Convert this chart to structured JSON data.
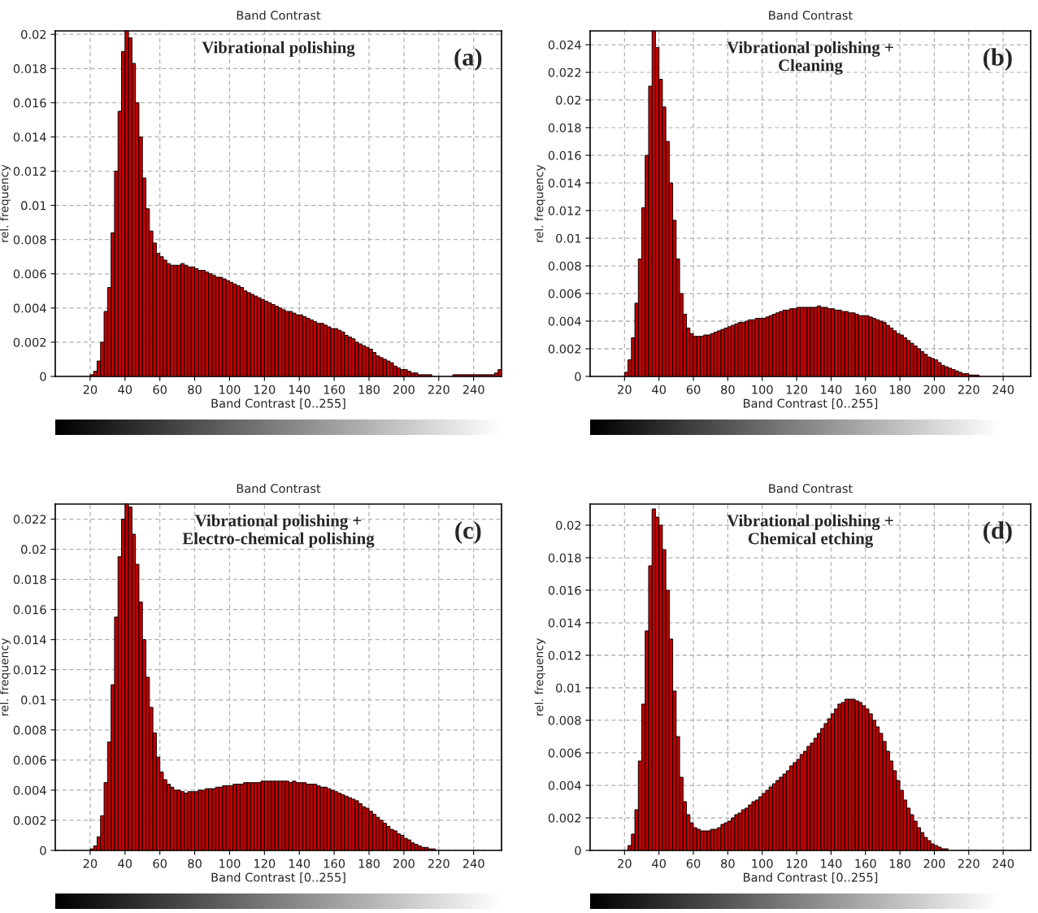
{
  "chart_data": [
    {
      "type": "histogram",
      "title": "Band Contrast",
      "xlabel": "Band Contrast [0..255]",
      "ylabel": "rel. frequency",
      "annotations": [
        "Vibrational polishing",
        "(a)"
      ],
      "color": "#c00000",
      "grid": true,
      "xlim": [
        0,
        256
      ],
      "ylim": [
        0,
        0.0202
      ],
      "xticks": [
        20,
        40,
        60,
        80,
        100,
        120,
        140,
        160,
        180,
        200,
        220,
        240
      ],
      "yticks": [
        0,
        0.002,
        0.004,
        0.006,
        0.008,
        0.01,
        0.012,
        0.014,
        0.016,
        0.018,
        0.02
      ],
      "bins": [
        0,
        2,
        4,
        6,
        8,
        10,
        12,
        14,
        16,
        18,
        20,
        22,
        24,
        26,
        28,
        30,
        32,
        34,
        36,
        38,
        40,
        42,
        44,
        46,
        48,
        50,
        52,
        54,
        56,
        58,
        60,
        62,
        64,
        66,
        68,
        70,
        72,
        74,
        76,
        78,
        80,
        82,
        84,
        86,
        88,
        90,
        92,
        94,
        96,
        98,
        100,
        102,
        104,
        106,
        108,
        110,
        112,
        114,
        116,
        118,
        120,
        122,
        124,
        126,
        128,
        130,
        132,
        134,
        136,
        138,
        140,
        142,
        144,
        146,
        148,
        150,
        152,
        154,
        156,
        158,
        160,
        162,
        164,
        166,
        168,
        170,
        172,
        174,
        176,
        178,
        180,
        182,
        184,
        186,
        188,
        190,
        192,
        194,
        196,
        198,
        200,
        202,
        204,
        206,
        208,
        210,
        212,
        214,
        216,
        218,
        220,
        222,
        224,
        226,
        228,
        230,
        232,
        234,
        236,
        238,
        240,
        242,
        244,
        246,
        248,
        250,
        252,
        254,
        256
      ],
      "values": [
        0,
        0,
        0,
        0,
        0,
        0,
        0,
        0,
        0,
        0,
        0.0001,
        0.0003,
        0.0009,
        0.002,
        0.0038,
        0.0052,
        0.0084,
        0.012,
        0.0155,
        0.019,
        0.0202,
        0.0198,
        0.0183,
        0.016,
        0.014,
        0.0116,
        0.0098,
        0.0085,
        0.0078,
        0.0072,
        0.007,
        0.0068,
        0.0066,
        0.0065,
        0.0065,
        0.0065,
        0.0066,
        0.0065,
        0.0064,
        0.0064,
        0.0063,
        0.0062,
        0.0062,
        0.0061,
        0.006,
        0.0059,
        0.0058,
        0.0058,
        0.0057,
        0.0056,
        0.0055,
        0.0054,
        0.0053,
        0.0052,
        0.005,
        0.0049,
        0.0048,
        0.0047,
        0.0046,
        0.0045,
        0.0044,
        0.0043,
        0.0042,
        0.0041,
        0.004,
        0.0039,
        0.0038,
        0.0038,
        0.0037,
        0.0036,
        0.0036,
        0.0035,
        0.0034,
        0.0033,
        0.0032,
        0.0031,
        0.0031,
        0.003,
        0.0029,
        0.0028,
        0.0028,
        0.0027,
        0.0026,
        0.0024,
        0.0023,
        0.0022,
        0.002,
        0.0019,
        0.0018,
        0.0017,
        0.0016,
        0.0014,
        0.0012,
        0.0011,
        0.001,
        0.0009,
        0.0008,
        0.0006,
        0.0005,
        0.0004,
        0.0004,
        0.0003,
        0.0002,
        0.0002,
        0.0001,
        0.0001,
        0.0001,
        0.0001,
        0,
        0,
        0,
        0,
        0,
        0,
        0.0001,
        0.0001,
        0.0001,
        0.0001,
        0.0001,
        0.0001,
        0.0001,
        0.0001,
        0.0001,
        0.0001,
        0.0001,
        0.0001,
        0.0002,
        0.0004
      ]
    },
    {
      "type": "histogram",
      "title": "Band Contrast",
      "xlabel": "Band Contrast [0..255]",
      "ylabel": "rel. frequency",
      "annotations": [
        "Vibrational polishing +\nCleaning",
        "(b)"
      ],
      "color": "#c00000",
      "grid": true,
      "xlim": [
        0,
        256
      ],
      "ylim": [
        0,
        0.025
      ],
      "xticks": [
        20,
        40,
        60,
        80,
        100,
        120,
        140,
        160,
        180,
        200,
        220,
        240
      ],
      "yticks": [
        0,
        0.002,
        0.004,
        0.006,
        0.008,
        0.01,
        0.012,
        0.014,
        0.016,
        0.018,
        0.02,
        0.022,
        0.024
      ],
      "bins": [
        0,
        2,
        4,
        6,
        8,
        10,
        12,
        14,
        16,
        18,
        20,
        22,
        24,
        26,
        28,
        30,
        32,
        34,
        36,
        38,
        40,
        42,
        44,
        46,
        48,
        50,
        52,
        54,
        56,
        58,
        60,
        62,
        64,
        66,
        68,
        70,
        72,
        74,
        76,
        78,
        80,
        82,
        84,
        86,
        88,
        90,
        92,
        94,
        96,
        98,
        100,
        102,
        104,
        106,
        108,
        110,
        112,
        114,
        116,
        118,
        120,
        122,
        124,
        126,
        128,
        130,
        132,
        134,
        136,
        138,
        140,
        142,
        144,
        146,
        148,
        150,
        152,
        154,
        156,
        158,
        160,
        162,
        164,
        166,
        168,
        170,
        172,
        174,
        176,
        178,
        180,
        182,
        184,
        186,
        188,
        190,
        192,
        194,
        196,
        198,
        200,
        202,
        204,
        206,
        208,
        210,
        212,
        214,
        216,
        218,
        220,
        222,
        224,
        226,
        228,
        230,
        232,
        234,
        236,
        238,
        240,
        242,
        244,
        246,
        248,
        250,
        252,
        254,
        256
      ],
      "values": [
        0,
        0,
        0,
        0,
        0,
        0,
        0,
        0,
        0,
        0,
        0.0003,
        0.0012,
        0.0028,
        0.0053,
        0.0085,
        0.0122,
        0.016,
        0.021,
        0.025,
        0.0238,
        0.0215,
        0.0195,
        0.017,
        0.014,
        0.0113,
        0.0085,
        0.006,
        0.0045,
        0.0035,
        0.0031,
        0.0029,
        0.0029,
        0.0029,
        0.003,
        0.003,
        0.0031,
        0.0032,
        0.0033,
        0.0034,
        0.0035,
        0.0036,
        0.0037,
        0.0038,
        0.0039,
        0.0039,
        0.004,
        0.0041,
        0.0041,
        0.0042,
        0.0042,
        0.0042,
        0.0043,
        0.0044,
        0.0045,
        0.0046,
        0.0047,
        0.0048,
        0.0048,
        0.0049,
        0.0049,
        0.005,
        0.005,
        0.005,
        0.005,
        0.005,
        0.005,
        0.0051,
        0.005,
        0.005,
        0.0049,
        0.0049,
        0.0048,
        0.0048,
        0.0047,
        0.0047,
        0.0046,
        0.0046,
        0.0045,
        0.0044,
        0.0044,
        0.0044,
        0.0043,
        0.0042,
        0.0041,
        0.004,
        0.0039,
        0.0037,
        0.0035,
        0.0033,
        0.0031,
        0.003,
        0.0028,
        0.0026,
        0.0024,
        0.0022,
        0.002,
        0.0018,
        0.0016,
        0.0014,
        0.0013,
        0.0012,
        0.001,
        0.0008,
        0.0007,
        0.0006,
        0.0005,
        0.0004,
        0.0003,
        0.0002,
        0.0002,
        0.0001,
        0.0001,
        0.0001,
        0,
        0,
        0,
        0,
        0,
        0,
        0,
        0,
        0,
        0,
        0,
        0,
        0,
        0,
        0
      ]
    },
    {
      "type": "histogram",
      "title": "Band Contrast",
      "xlabel": "Band Contrast [0..255]",
      "ylabel": "rel. frequency",
      "annotations": [
        "Vibrational polishing +\nElectro-chemical polishing",
        "(c)"
      ],
      "color": "#c00000",
      "grid": true,
      "xlim": [
        0,
        256
      ],
      "ylim": [
        0,
        0.023
      ],
      "xticks": [
        20,
        40,
        60,
        80,
        100,
        120,
        140,
        160,
        180,
        200,
        220,
        240
      ],
      "yticks": [
        0,
        0.002,
        0.004,
        0.006,
        0.008,
        0.01,
        0.012,
        0.014,
        0.016,
        0.018,
        0.02,
        0.022
      ],
      "bins": [
        0,
        2,
        4,
        6,
        8,
        10,
        12,
        14,
        16,
        18,
        20,
        22,
        24,
        26,
        28,
        30,
        32,
        34,
        36,
        38,
        40,
        42,
        44,
        46,
        48,
        50,
        52,
        54,
        56,
        58,
        60,
        62,
        64,
        66,
        68,
        70,
        72,
        74,
        76,
        78,
        80,
        82,
        84,
        86,
        88,
        90,
        92,
        94,
        96,
        98,
        100,
        102,
        104,
        106,
        108,
        110,
        112,
        114,
        116,
        118,
        120,
        122,
        124,
        126,
        128,
        130,
        132,
        134,
        136,
        138,
        140,
        142,
        144,
        146,
        148,
        150,
        152,
        154,
        156,
        158,
        160,
        162,
        164,
        166,
        168,
        170,
        172,
        174,
        176,
        178,
        180,
        182,
        184,
        186,
        188,
        190,
        192,
        194,
        196,
        198,
        200,
        202,
        204,
        206,
        208,
        210,
        212,
        214,
        216,
        218,
        220,
        222,
        224,
        226,
        228,
        230,
        232,
        234,
        236,
        238,
        240,
        242,
        244,
        246,
        248,
        250,
        252,
        254,
        256
      ],
      "values": [
        0,
        0,
        0,
        0,
        0,
        0,
        0,
        0,
        0,
        0,
        0.0001,
        0.0003,
        0.0009,
        0.0023,
        0.0045,
        0.0072,
        0.011,
        0.0155,
        0.0195,
        0.022,
        0.023,
        0.0228,
        0.021,
        0.019,
        0.0165,
        0.014,
        0.0115,
        0.0095,
        0.0078,
        0.0062,
        0.0052,
        0.0047,
        0.0044,
        0.0042,
        0.004,
        0.004,
        0.0039,
        0.0038,
        0.0039,
        0.0039,
        0.0039,
        0.004,
        0.004,
        0.0041,
        0.0041,
        0.0041,
        0.0042,
        0.0042,
        0.0043,
        0.0043,
        0.0043,
        0.0044,
        0.0044,
        0.0044,
        0.0045,
        0.0045,
        0.0045,
        0.0045,
        0.0045,
        0.0046,
        0.0046,
        0.0046,
        0.0046,
        0.0046,
        0.0046,
        0.0046,
        0.0046,
        0.0045,
        0.0046,
        0.0045,
        0.0045,
        0.0045,
        0.0044,
        0.0044,
        0.0044,
        0.0043,
        0.0042,
        0.0042,
        0.0041,
        0.004,
        0.0039,
        0.0038,
        0.0037,
        0.0036,
        0.0035,
        0.0034,
        0.0033,
        0.0031,
        0.0029,
        0.0028,
        0.0026,
        0.0024,
        0.0022,
        0.002,
        0.0018,
        0.0016,
        0.0014,
        0.0013,
        0.0011,
        0.001,
        0.0008,
        0.0007,
        0.0005,
        0.0004,
        0.0003,
        0.0002,
        0.0002,
        0.0001,
        0.0001,
        0,
        0,
        0,
        0,
        0,
        0,
        0,
        0,
        0,
        0,
        0,
        0,
        0,
        0,
        0,
        0,
        0,
        0,
        0
      ]
    },
    {
      "type": "histogram",
      "title": "Band Contrast",
      "xlabel": "Band Contrast [0..255]",
      "ylabel": "rel. frequency",
      "annotations": [
        "Vibrational polishing +\nChemical etching",
        "(d)"
      ],
      "color": "#c00000",
      "grid": true,
      "xlim": [
        0,
        256
      ],
      "ylim": [
        0,
        0.0213
      ],
      "xticks": [
        20,
        40,
        60,
        80,
        100,
        120,
        140,
        160,
        180,
        200,
        220,
        240
      ],
      "yticks": [
        0,
        0.002,
        0.004,
        0.006,
        0.008,
        0.01,
        0.012,
        0.014,
        0.016,
        0.018,
        0.02
      ],
      "bins": [
        0,
        2,
        4,
        6,
        8,
        10,
        12,
        14,
        16,
        18,
        20,
        22,
        24,
        26,
        28,
        30,
        32,
        34,
        36,
        38,
        40,
        42,
        44,
        46,
        48,
        50,
        52,
        54,
        56,
        58,
        60,
        62,
        64,
        66,
        68,
        70,
        72,
        74,
        76,
        78,
        80,
        82,
        84,
        86,
        88,
        90,
        92,
        94,
        96,
        98,
        100,
        102,
        104,
        106,
        108,
        110,
        112,
        114,
        116,
        118,
        120,
        122,
        124,
        126,
        128,
        130,
        132,
        134,
        136,
        138,
        140,
        142,
        144,
        146,
        148,
        150,
        152,
        154,
        156,
        158,
        160,
        162,
        164,
        166,
        168,
        170,
        172,
        174,
        176,
        178,
        180,
        182,
        184,
        186,
        188,
        190,
        192,
        194,
        196,
        198,
        200,
        202,
        204,
        206,
        208,
        210,
        212,
        214,
        216,
        218,
        220,
        222,
        224,
        226,
        228,
        230,
        232,
        234,
        236,
        238,
        240,
        242,
        244,
        246,
        248,
        250,
        252,
        254,
        256
      ],
      "values": [
        0,
        0,
        0,
        0,
        0,
        0,
        0,
        0,
        0,
        0,
        0,
        0.0003,
        0.001,
        0.0025,
        0.0055,
        0.009,
        0.0135,
        0.0175,
        0.021,
        0.0205,
        0.02,
        0.0185,
        0.016,
        0.013,
        0.0098,
        0.007,
        0.0045,
        0.003,
        0.0022,
        0.0017,
        0.0014,
        0.0013,
        0.0012,
        0.0012,
        0.0012,
        0.0013,
        0.0013,
        0.0014,
        0.0016,
        0.0017,
        0.0018,
        0.002,
        0.0022,
        0.0023,
        0.0025,
        0.0026,
        0.0028,
        0.003,
        0.0031,
        0.0033,
        0.0035,
        0.0037,
        0.0039,
        0.0041,
        0.0043,
        0.0045,
        0.0047,
        0.0049,
        0.0052,
        0.0054,
        0.0056,
        0.0059,
        0.0061,
        0.0064,
        0.0066,
        0.0069,
        0.0072,
        0.0075,
        0.0078,
        0.0081,
        0.0084,
        0.0087,
        0.009,
        0.0091,
        0.0093,
        0.0093,
        0.0093,
        0.0092,
        0.0091,
        0.0089,
        0.0087,
        0.0084,
        0.008,
        0.0076,
        0.0072,
        0.0067,
        0.0061,
        0.0055,
        0.0049,
        0.0043,
        0.0037,
        0.0031,
        0.0026,
        0.0022,
        0.0018,
        0.0014,
        0.0011,
        0.0008,
        0.0006,
        0.0004,
        0.0003,
        0.0002,
        0.0001,
        0.0001,
        0,
        0,
        0,
        0,
        0,
        0,
        0,
        0,
        0,
        0,
        0,
        0,
        0,
        0,
        0,
        0,
        0,
        0,
        0,
        0,
        0,
        0,
        0,
        0
      ]
    }
  ]
}
